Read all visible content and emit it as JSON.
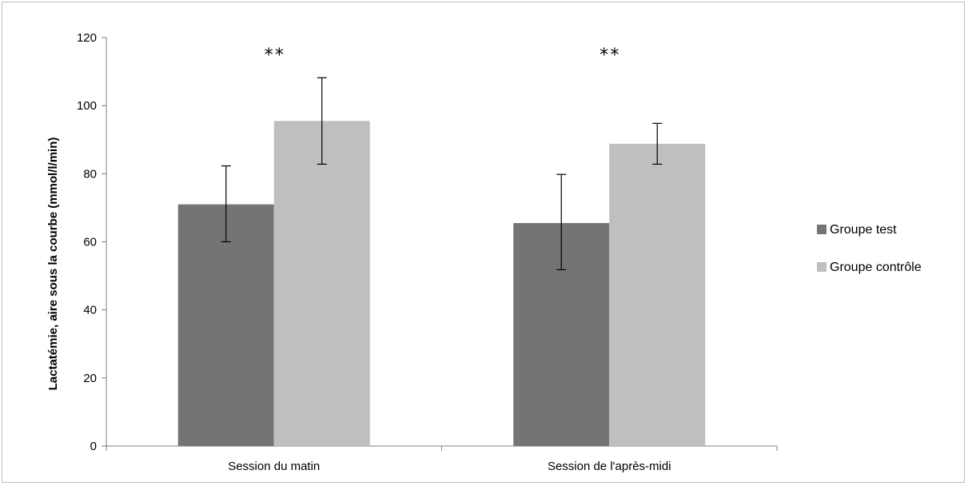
{
  "chart_data": {
    "type": "bar",
    "title": "",
    "xlabel": "",
    "ylabel": "Lactatémie, aire sous la courbe (mmol/l/min)",
    "ylim": [
      0,
      120
    ],
    "yticks": [
      0,
      20,
      40,
      60,
      80,
      100,
      120
    ],
    "categories": [
      "Session du matin",
      "Session de l'après-midi"
    ],
    "series": [
      {
        "name": "Groupe test",
        "color": "#747474",
        "values": [
          71,
          65.5
        ],
        "error_low": [
          60,
          51.8
        ],
        "error_high": [
          82.3,
          79.8
        ]
      },
      {
        "name": "Groupe contrôle",
        "color": "#bfbfbf",
        "values": [
          95.5,
          88.8
        ],
        "error_low": [
          82.8,
          82.8
        ],
        "error_high": [
          108.2,
          94.8
        ]
      }
    ],
    "annotations": [
      "**",
      "**"
    ],
    "legend": "right",
    "grid": false
  }
}
